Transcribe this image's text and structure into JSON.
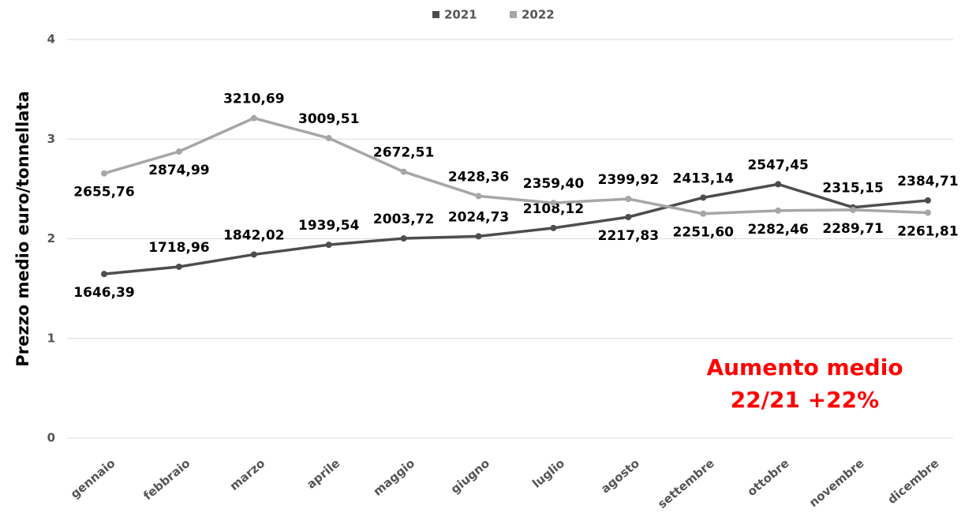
{
  "chart_data": {
    "type": "line",
    "y_label": "Prezzo medio euro/tonnellata",
    "categories": [
      "gennaio",
      "febbraio",
      "marzo",
      "aprile",
      "maggio",
      "giugno",
      "luglio",
      "agosto",
      "settembre",
      "ottobre",
      "novembre",
      "dicembre"
    ],
    "series": [
      {
        "name": "2021",
        "color": "#4d4d4d",
        "values": [
          1646.39,
          1718.96,
          1842.02,
          1939.54,
          2003.72,
          2024.73,
          2108.12,
          2217.83,
          2413.14,
          2547.45,
          2315.15,
          2384.71
        ],
        "value_labels": [
          "1646,39",
          "1718,96",
          "1842,02",
          "1939,54",
          "2003,72",
          "2024,73",
          "2108,12",
          "2217,83",
          "2413,14",
          "2547,45",
          "2315,15",
          "2384,71"
        ]
      },
      {
        "name": "2022",
        "color": "#a6a6a6",
        "values": [
          2655.76,
          2874.99,
          3210.69,
          3009.51,
          2672.51,
          2428.36,
          2359.4,
          2399.92,
          2251.6,
          2282.46,
          2289.71,
          2261.81
        ],
        "value_labels": [
          "2655,76",
          "2874,99",
          "3210,69",
          "3009,51",
          "2672,51",
          "2428,36",
          "2359,40",
          "2399,92",
          "2251,60",
          "2282,46",
          "2289,71",
          "2261,81"
        ]
      }
    ],
    "ylim": [
      0,
      4000
    ],
    "yticks": [
      {
        "value": 0,
        "label": "0"
      },
      {
        "value": 1000,
        "label": "1"
      },
      {
        "value": 2000,
        "label": "2"
      },
      {
        "value": 3000,
        "label": "3"
      },
      {
        "value": 4000,
        "label": "4"
      }
    ],
    "grid": true,
    "legend": "top",
    "annotations": [
      "Aumento medio",
      "22/21 +22%"
    ]
  }
}
